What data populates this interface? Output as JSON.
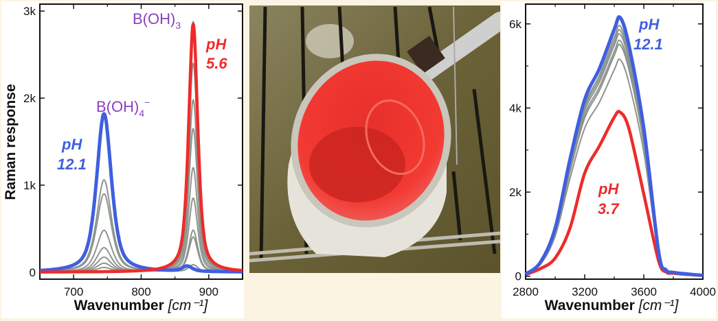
{
  "colors": {
    "high_ph": "#3f5fe0",
    "low_ph": "#ee2b2b",
    "intermediate": "#8e948e",
    "species_label": "#8a3fc0",
    "background": "#fcf4e2"
  },
  "chart_data": [
    {
      "type": "line",
      "ylabel": "Raman response",
      "xlabel": "Wavenumber",
      "xlabel_unit": "[cm⁻¹]",
      "xlim": [
        650,
        950
      ],
      "ylim": [
        -80,
        3080
      ],
      "xticks": [
        700,
        800,
        900
      ],
      "xtick_labels": [
        "700",
        "800",
        "900"
      ],
      "yticks": [
        0,
        1000,
        2000,
        3000
      ],
      "ytick_labels": [
        "0",
        "1k",
        "2k",
        "3k"
      ],
      "grid": false,
      "annotations": {
        "borate": {
          "base": "B(OH)",
          "sub": "4",
          "sup": "−"
        },
        "boric": {
          "base": "B(OH)",
          "sub": "3"
        },
        "high": {
          "line1": "pH",
          "line2": "12.1"
        },
        "low": {
          "line1": "pH",
          "line2": "5.6"
        }
      },
      "series": [
        {
          "role": "high_ph",
          "peaks": [
            {
              "center": 745,
              "height": 1820,
              "fwhm": 26
            },
            {
              "center": 868,
              "height": 60,
              "fwhm": 18
            }
          ]
        },
        {
          "role": "low_ph",
          "peaks": [
            {
              "center": 877,
              "height": 2850,
              "fwhm": 16
            }
          ]
        },
        {
          "role": "intermediate",
          "peaks": [
            {
              "center": 745,
              "height": 1060,
              "fwhm": 26
            },
            {
              "center": 877,
              "height": 80,
              "fwhm": 16
            }
          ]
        },
        {
          "role": "intermediate",
          "peaks": [
            {
              "center": 745,
              "height": 900,
              "fwhm": 26
            },
            {
              "center": 877,
              "height": 400,
              "fwhm": 16
            }
          ]
        },
        {
          "role": "intermediate",
          "peaks": [
            {
              "center": 745,
              "height": 480,
              "fwhm": 26
            },
            {
              "center": 877,
              "height": 480,
              "fwhm": 16
            }
          ]
        },
        {
          "role": "intermediate",
          "peaks": [
            {
              "center": 745,
              "height": 280,
              "fwhm": 26
            },
            {
              "center": 877,
              "height": 850,
              "fwhm": 16
            }
          ]
        },
        {
          "role": "intermediate",
          "peaks": [
            {
              "center": 745,
              "height": 170,
              "fwhm": 26
            },
            {
              "center": 877,
              "height": 1200,
              "fwhm": 16
            }
          ]
        },
        {
          "role": "intermediate",
          "peaks": [
            {
              "center": 745,
              "height": 100,
              "fwhm": 26
            },
            {
              "center": 877,
              "height": 1650,
              "fwhm": 16
            }
          ]
        },
        {
          "role": "intermediate",
          "peaks": [
            {
              "center": 745,
              "height": 50,
              "fwhm": 26
            },
            {
              "center": 877,
              "height": 1980,
              "fwhm": 16
            }
          ]
        },
        {
          "role": "intermediate",
          "peaks": [
            {
              "center": 877,
              "height": 2400,
              "fwhm": 16
            }
          ]
        },
        {
          "role": "intermediate",
          "peaks": [
            {
              "center": 877,
              "height": 2880,
              "fwhm": 16
            }
          ]
        }
      ]
    },
    {
      "type": "line",
      "xlabel": "Wavenumber",
      "xlabel_unit": "[cm⁻¹]",
      "xlim": [
        2800,
        4000
      ],
      "ylim": [
        -70,
        6470
      ],
      "xticks": [
        2800,
        3200,
        3600,
        4000
      ],
      "xtick_labels": [
        "2800",
        "3200",
        "3600",
        "4000"
      ],
      "yticks": [
        0,
        2000,
        4000,
        6000
      ],
      "ytick_labels": [
        "0",
        "2k",
        "4k",
        "6k"
      ],
      "grid": false,
      "annotations": {
        "high": {
          "line1": "pH",
          "line2": "12.1"
        },
        "low": {
          "line1": "pH",
          "line2": "3.7"
        }
      },
      "x": [
        2800,
        2900,
        3000,
        3100,
        3200,
        3300,
        3400,
        3440,
        3500,
        3600,
        3700,
        3750,
        3800,
        3900,
        4000
      ],
      "series": [
        {
          "role": "intermediate",
          "values": [
            41,
            278,
            953,
            2320,
            3520,
            4140,
            4910,
            5150,
            4590,
            2950,
            495,
            124,
            77,
            41,
            15
          ]
        },
        {
          "role": "intermediate",
          "values": [
            44,
            297,
            1020,
            2475,
            3760,
            4420,
            5250,
            5500,
            4900,
            3150,
            530,
            132,
            83,
            44,
            16
          ]
        },
        {
          "role": "intermediate",
          "values": [
            45,
            300,
            1035,
            2520,
            3830,
            4500,
            5340,
            5600,
            4990,
            3200,
            540,
            134,
            84,
            45,
            17
          ]
        },
        {
          "role": "intermediate",
          "values": [
            45,
            310,
            1065,
            2590,
            3930,
            4620,
            5490,
            5750,
            5120,
            3290,
            550,
            138,
            86,
            46,
            17
          ]
        },
        {
          "role": "intermediate",
          "values": [
            45,
            315,
            1080,
            2630,
            4000,
            4700,
            5580,
            5850,
            5210,
            3350,
            560,
            140,
            88,
            47,
            18
          ]
        },
        {
          "role": "intermediate",
          "values": [
            50,
            320,
            1100,
            2680,
            4060,
            4780,
            5680,
            5950,
            5300,
            3400,
            570,
            145,
            90,
            50,
            20
          ]
        },
        {
          "role": "low_ph",
          "values": [
            40,
            180,
            430,
            1140,
            2450,
            3100,
            3780,
            3900,
            3500,
            1950,
            370,
            100,
            70,
            40,
            20
          ]
        },
        {
          "role": "high_ph",
          "values": [
            50,
            330,
            1140,
            2770,
            4200,
            4940,
            5870,
            6150,
            5480,
            3520,
            590,
            150,
            90,
            50,
            20
          ]
        }
      ]
    }
  ]
}
